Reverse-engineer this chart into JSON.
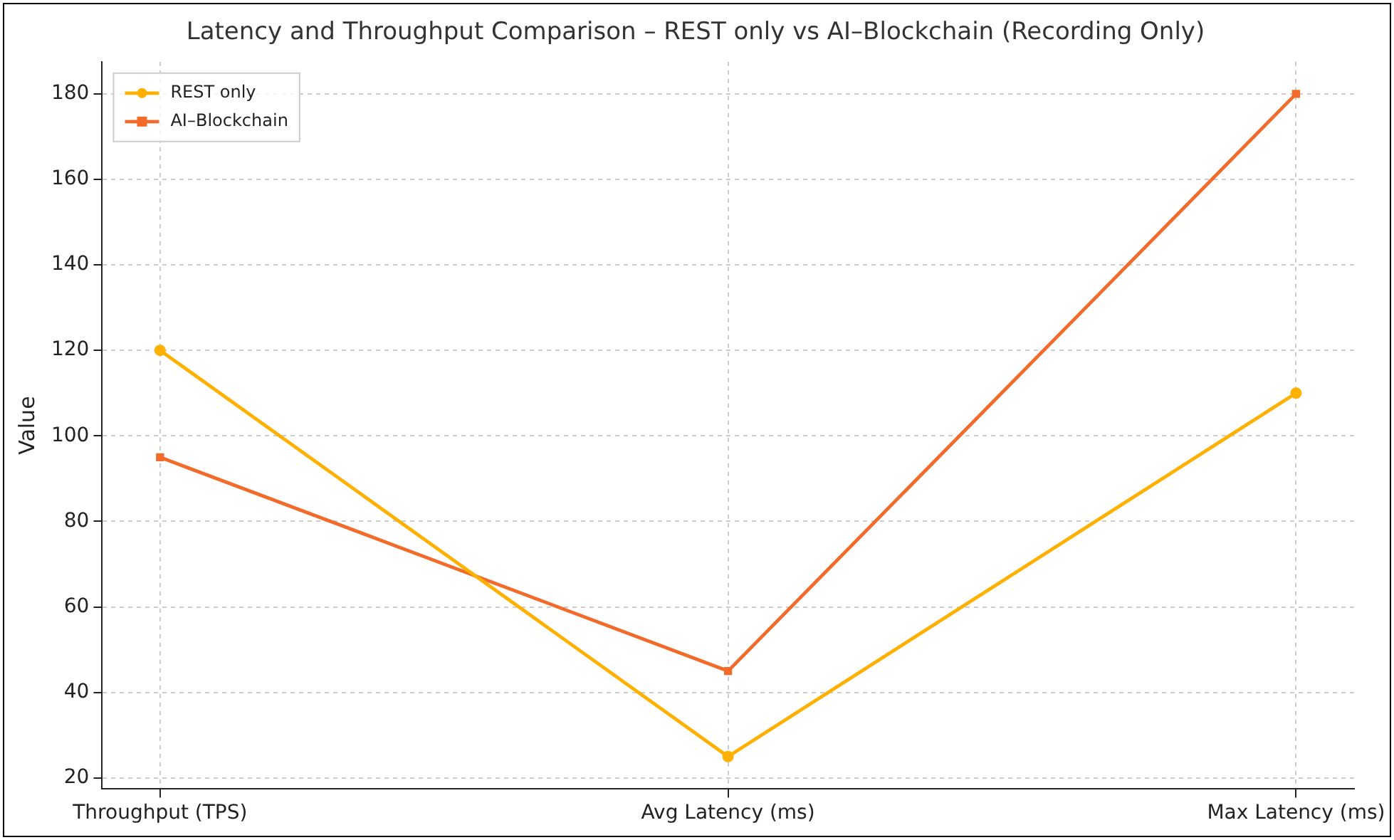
{
  "chart_data": {
    "type": "line",
    "title": "Latency and Throughput Comparison – REST only vs AI–Blockchain (Recording Only)",
    "ylabel": "Value",
    "categories": [
      "Throughput (TPS)",
      "Avg Latency (ms)",
      "Max Latency (ms)"
    ],
    "series": [
      {
        "name": "REST only",
        "color": "#ffb000",
        "marker": "circle",
        "values": [
          120,
          25,
          110
        ]
      },
      {
        "name": "AI–Blockchain",
        "color": "#f26b2a",
        "marker": "square",
        "values": [
          95,
          45,
          180
        ]
      }
    ],
    "ylim": [
      17.4,
      187.5
    ],
    "yticks": [
      20,
      40,
      60,
      80,
      100,
      120,
      140,
      160,
      180
    ],
    "grid": true,
    "legend": "top left",
    "line_style": "solid"
  }
}
